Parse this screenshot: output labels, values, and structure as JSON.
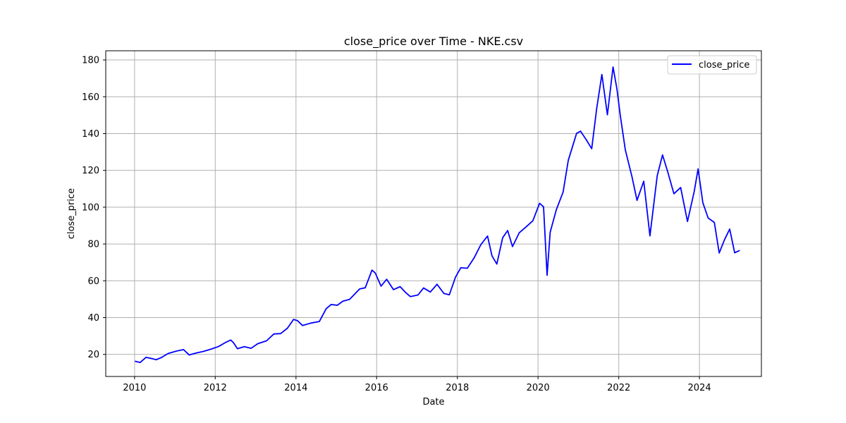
{
  "chart_data": {
    "type": "line",
    "title": "close_price over Time - NKE.csv",
    "xlabel": "Date",
    "ylabel": "close_price",
    "xlim": [
      "2009-04-15",
      "2025-07-15"
    ],
    "ylim": [
      8,
      185
    ],
    "x_ticks": [
      "2010",
      "2012",
      "2014",
      "2016",
      "2018",
      "2020",
      "2022",
      "2024"
    ],
    "y_ticks": [
      20,
      40,
      60,
      80,
      100,
      120,
      140,
      160,
      180
    ],
    "grid": true,
    "legend_position": "top-right",
    "colors": {
      "series": "#0000ff",
      "grid": "#b0b0b0",
      "axes": "#000000"
    },
    "series": [
      {
        "name": "close_price",
        "points": [
          [
            "2010-01-04",
            16.3
          ],
          [
            "2010-02-20",
            15.6
          ],
          [
            "2010-04-15",
            18.4
          ],
          [
            "2010-06-15",
            17.6
          ],
          [
            "2010-07-15",
            17.1
          ],
          [
            "2010-09-01",
            18.3
          ],
          [
            "2010-11-01",
            20.5
          ],
          [
            "2011-01-15",
            21.8
          ],
          [
            "2011-03-20",
            22.6
          ],
          [
            "2011-05-10",
            19.7
          ],
          [
            "2011-07-15",
            20.8
          ],
          [
            "2011-09-15",
            21.6
          ],
          [
            "2011-12-01",
            23.0
          ],
          [
            "2012-02-01",
            24.3
          ],
          [
            "2012-04-01",
            26.4
          ],
          [
            "2012-05-20",
            27.8
          ],
          [
            "2012-06-15",
            26.3
          ],
          [
            "2012-07-20",
            23.1
          ],
          [
            "2012-09-20",
            24.2
          ],
          [
            "2012-11-20",
            23.3
          ],
          [
            "2013-01-20",
            25.8
          ],
          [
            "2013-04-10",
            27.4
          ],
          [
            "2013-06-15",
            31.1
          ],
          [
            "2013-08-15",
            31.3
          ],
          [
            "2013-10-15",
            34.2
          ],
          [
            "2013-12-10",
            39.0
          ],
          [
            "2014-01-15",
            38.3
          ],
          [
            "2014-03-01",
            35.7
          ],
          [
            "2014-05-15",
            37.0
          ],
          [
            "2014-08-01",
            37.9
          ],
          [
            "2014-10-01",
            44.8
          ],
          [
            "2014-11-15",
            47.1
          ],
          [
            "2015-01-10",
            46.7
          ],
          [
            "2015-03-01",
            48.9
          ],
          [
            "2015-05-01",
            49.9
          ],
          [
            "2015-08-01",
            55.6
          ],
          [
            "2015-09-20",
            56.2
          ],
          [
            "2015-11-20",
            65.8
          ],
          [
            "2015-12-20",
            64.2
          ],
          [
            "2016-02-10",
            57.1
          ],
          [
            "2016-04-01",
            60.8
          ],
          [
            "2016-06-01",
            55.2
          ],
          [
            "2016-08-01",
            56.8
          ],
          [
            "2016-09-20",
            53.6
          ],
          [
            "2016-11-01",
            51.4
          ],
          [
            "2017-01-10",
            52.3
          ],
          [
            "2017-03-01",
            56.1
          ],
          [
            "2017-05-01",
            53.9
          ],
          [
            "2017-07-01",
            58.1
          ],
          [
            "2017-09-01",
            53.1
          ],
          [
            "2017-10-20",
            52.4
          ],
          [
            "2017-12-15",
            62.0
          ],
          [
            "2018-02-01",
            67.1
          ],
          [
            "2018-04-01",
            66.8
          ],
          [
            "2018-06-01",
            72.4
          ],
          [
            "2018-08-01",
            79.6
          ],
          [
            "2018-10-01",
            84.3
          ],
          [
            "2018-11-10",
            73.6
          ],
          [
            "2018-12-24",
            69.1
          ],
          [
            "2019-02-15",
            83.4
          ],
          [
            "2019-04-01",
            87.3
          ],
          [
            "2019-05-15",
            78.6
          ],
          [
            "2019-07-15",
            86.1
          ],
          [
            "2019-09-15",
            89.3
          ],
          [
            "2019-11-15",
            92.6
          ],
          [
            "2020-01-15",
            102.1
          ],
          [
            "2020-02-20",
            100.2
          ],
          [
            "2020-03-23",
            63.0
          ],
          [
            "2020-04-20",
            86.4
          ],
          [
            "2020-06-15",
            98.7
          ],
          [
            "2020-08-15",
            108.2
          ],
          [
            "2020-10-01",
            125.5
          ],
          [
            "2020-12-15",
            140.1
          ],
          [
            "2021-01-20",
            141.3
          ],
          [
            "2021-03-15",
            136.4
          ],
          [
            "2021-05-01",
            131.8
          ],
          [
            "2021-06-15",
            153.6
          ],
          [
            "2021-08-01",
            172.1
          ],
          [
            "2021-09-20",
            150.2
          ],
          [
            "2021-11-10",
            176.2
          ],
          [
            "2021-12-15",
            164.3
          ],
          [
            "2022-01-15",
            149.7
          ],
          [
            "2022-03-01",
            131.2
          ],
          [
            "2022-05-01",
            116.4
          ],
          [
            "2022-06-15",
            103.7
          ],
          [
            "2022-08-15",
            114.1
          ],
          [
            "2022-10-10",
            84.4
          ],
          [
            "2022-12-15",
            117.1
          ],
          [
            "2023-02-01",
            128.4
          ],
          [
            "2023-03-20",
            119.2
          ],
          [
            "2023-05-15",
            107.3
          ],
          [
            "2023-07-15",
            110.7
          ],
          [
            "2023-09-15",
            92.2
          ],
          [
            "2023-11-15",
            108.6
          ],
          [
            "2023-12-20",
            120.8
          ],
          [
            "2024-02-01",
            102.4
          ],
          [
            "2024-03-20",
            94.1
          ],
          [
            "2024-05-15",
            91.7
          ],
          [
            "2024-06-28",
            75.1
          ],
          [
            "2024-08-15",
            82.3
          ],
          [
            "2024-10-01",
            88.1
          ],
          [
            "2024-11-15",
            75.2
          ],
          [
            "2024-12-31",
            76.5
          ]
        ]
      }
    ]
  }
}
